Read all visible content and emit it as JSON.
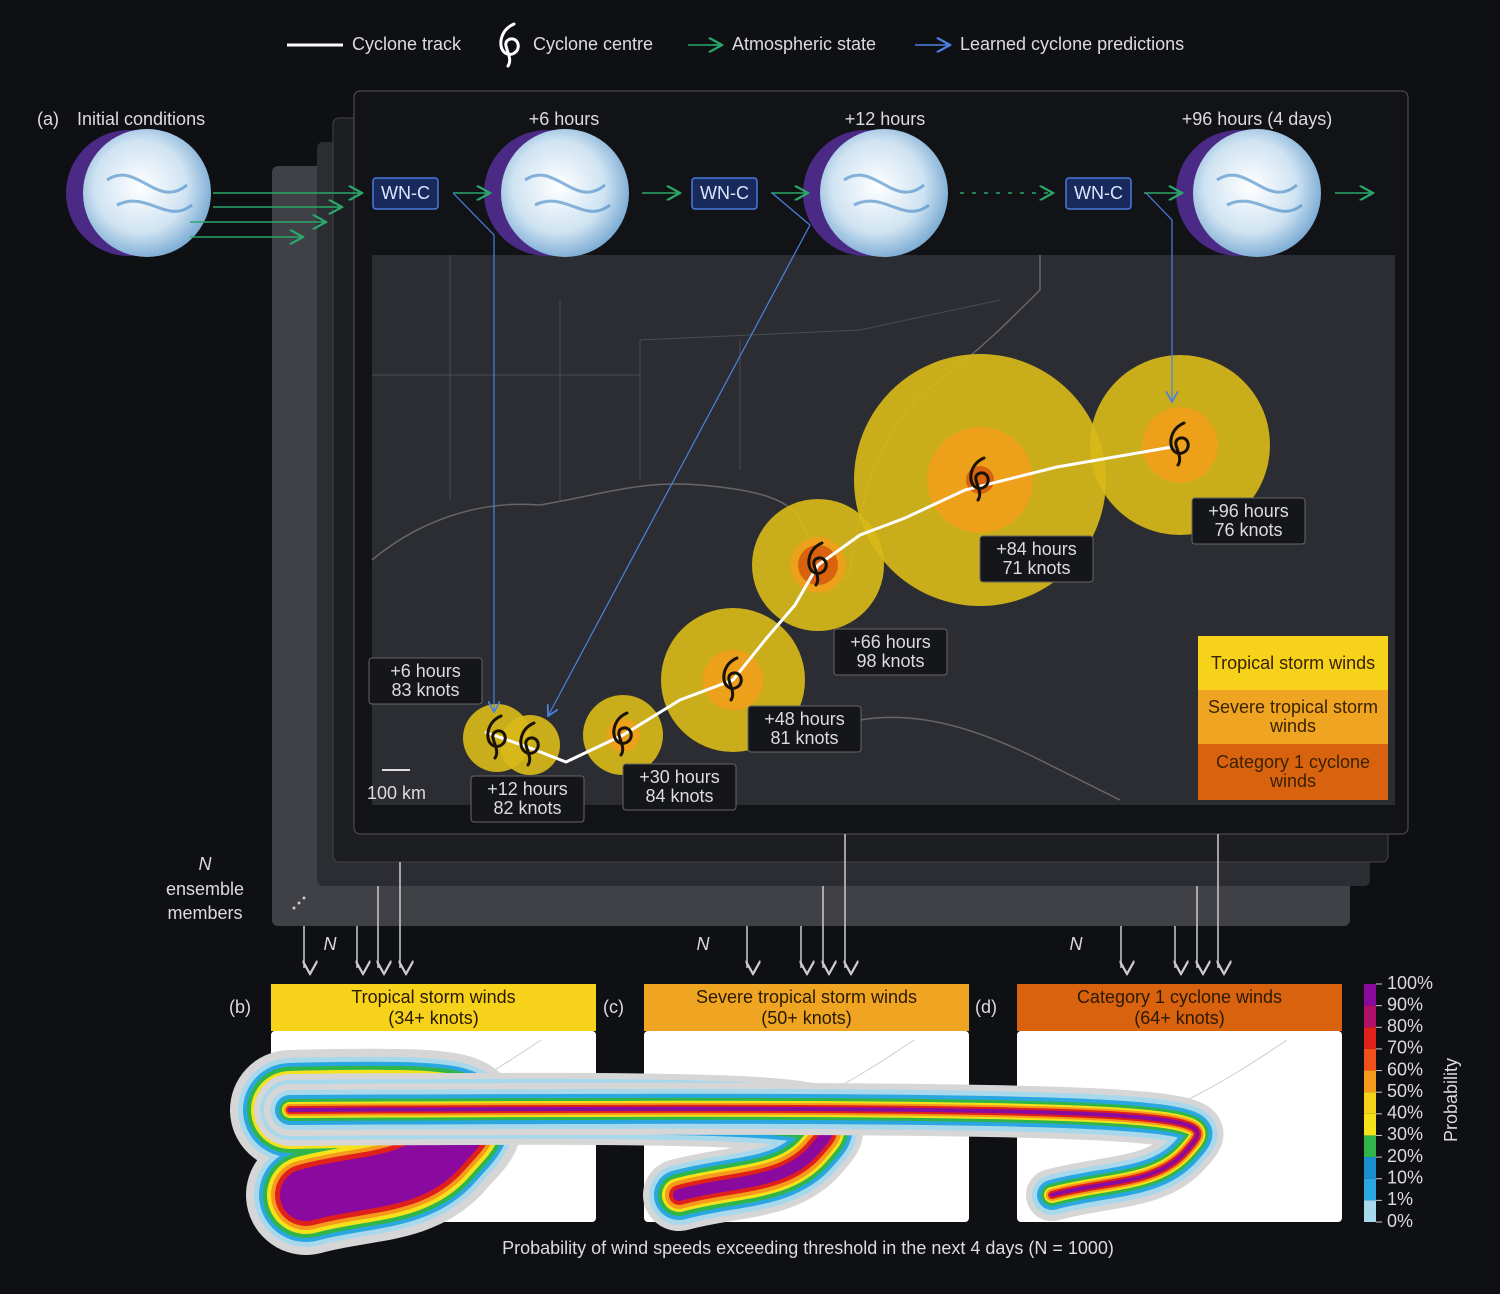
{
  "legend": [
    "Cyclone track",
    "Cyclone centre",
    "Atmospheric state",
    "Learned cyclone predictions"
  ],
  "panel_a": {
    "label": "(a)",
    "initial": "Initial conditions",
    "steps": [
      "+6 hours",
      "+12 hours",
      "+96 hours (4 days)"
    ],
    "model": "WN-C",
    "track_labels": [
      {
        "time": "+6 hours",
        "wind": "83 knots"
      },
      {
        "time": "+12 hours",
        "wind": "82 knots"
      },
      {
        "time": "+30 hours",
        "wind": "84 knots"
      },
      {
        "time": "+48 hours",
        "wind": "81 knots"
      },
      {
        "time": "+66 hours",
        "wind": "98 knots"
      },
      {
        "time": "+84 hours",
        "wind": "71 knots"
      },
      {
        "time": "+96 hours",
        "wind": "76 knots"
      }
    ],
    "scale": "100 km",
    "wind_legend": [
      "Tropical storm winds",
      "Severe tropical storm winds",
      "Category 1 cyclone winds"
    ]
  },
  "ensemble": {
    "n": "N",
    "label": "ensemble members"
  },
  "panels": [
    {
      "label": "(b)",
      "title": "Tropical storm winds",
      "threshold": "(34+ knots)"
    },
    {
      "label": "(c)",
      "title": "Severe tropical storm winds",
      "threshold": "(50+ knots)"
    },
    {
      "label": "(d)",
      "title": "Category 1 cyclone winds",
      "threshold": "(64+ knots)"
    }
  ],
  "colorbar": {
    "ticks": [
      "100%",
      "90%",
      "80%",
      "70%",
      "60%",
      "50%",
      "40%",
      "30%",
      "20%",
      "10%",
      "1%",
      "0%"
    ],
    "label": "Probability"
  },
  "caption": "Probability of wind speeds exceeding threshold in the next 4 days (N = 1000)"
}
